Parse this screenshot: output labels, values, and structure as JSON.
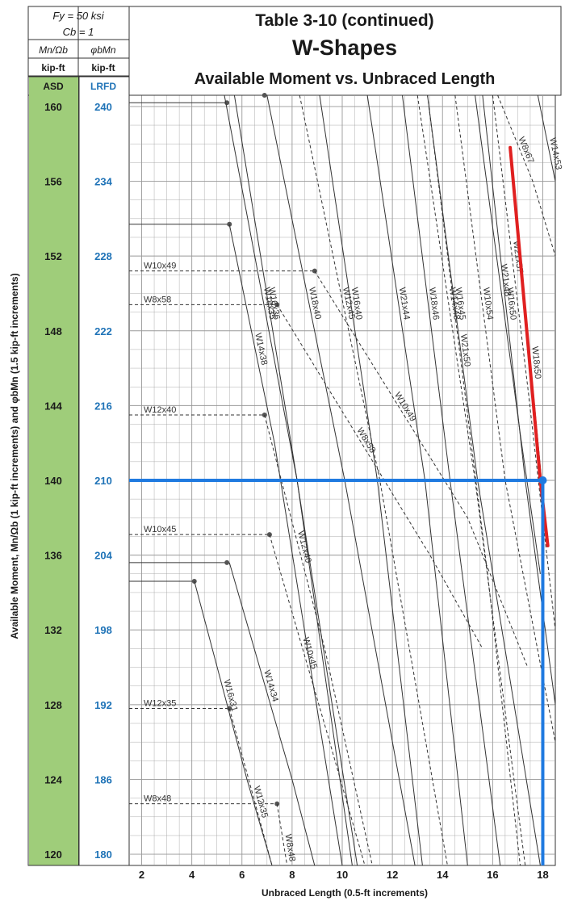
{
  "header": {
    "param1": "Fy = 50 ksi",
    "param2": "Cb = 1",
    "asd_symbol": "Mn/Ωb",
    "lrfd_symbol": "φbMn",
    "asd_unit": "kip-ft",
    "lrfd_unit": "kip-ft",
    "asd_tag": "ASD",
    "lrfd_tag": "LRFD",
    "title1": "Table 3-10 (continued)",
    "title2": "W-Shapes",
    "title3": "Available Moment vs. Unbraced Length"
  },
  "colors": {
    "asd_band": "#9fcd7a",
    "lrfd_text": "#1f73b7",
    "highlight_red": "#e02020",
    "highlight_blue": "#1f7ae0",
    "grid": "#999999",
    "curve": "#333333"
  },
  "chart_data": {
    "type": "line",
    "title": "Available Moment vs. Unbraced Length",
    "xlabel": "Unbraced Length (0.5-ft increments)",
    "ylabel": "Available Moment, Mn/Ωb (1 kip-ft increments) and φbMn (1.5 kip-ft increments)",
    "xlim": [
      1.5,
      18.5
    ],
    "ylim": [
      119.4,
      160.6
    ],
    "x_ticks": [
      2,
      4,
      6,
      8,
      10,
      12,
      14,
      16,
      18
    ],
    "asd_ticks": [
      120,
      124,
      128,
      132,
      136,
      140,
      144,
      148,
      152,
      156,
      160
    ],
    "lrfd_ticks": [
      180,
      186,
      192,
      198,
      204,
      210,
      216,
      222,
      228,
      234,
      240
    ],
    "grid": true,
    "series": [
      {
        "name": "W16x36",
        "style": "solid",
        "points": [
          [
            5.7,
            160.6
          ],
          [
            8.2,
            140
          ],
          [
            10.6,
            119.4
          ]
        ]
      },
      {
        "name": "W18x35",
        "style": "solid",
        "points": [
          [
            5.3,
            160.6
          ],
          [
            8.2,
            140
          ],
          [
            10.4,
            119.4
          ]
        ]
      },
      {
        "name": "W14x34",
        "style": "solid",
        "points": [
          [
            5.5,
            135.6
          ],
          [
            8.0,
            124
          ],
          [
            8.9,
            119.4
          ]
        ]
      },
      {
        "name": "W16x31",
        "style": "solid",
        "points": [
          [
            4.1,
            134.6
          ],
          [
            6.2,
            124
          ],
          [
            7.2,
            119.4
          ]
        ]
      },
      {
        "name": "W14x38",
        "style": "solid",
        "points": [
          [
            5.5,
            153.7
          ],
          [
            7.3,
            142
          ],
          [
            10.0,
            119.4
          ]
        ]
      },
      {
        "name": "W18x40",
        "style": "solid",
        "points": [
          [
            7.0,
            160.6
          ],
          [
            10.1,
            140
          ],
          [
            12.9,
            119.4
          ]
        ]
      },
      {
        "name": "W16x40",
        "style": "solid",
        "points": [
          [
            9.1,
            160.6
          ],
          [
            11.4,
            140
          ],
          [
            13.2,
            119.4
          ]
        ]
      },
      {
        "name": "W21x44",
        "style": "solid",
        "points": [
          [
            11.0,
            160.6
          ],
          [
            13.3,
            140
          ],
          [
            15.0,
            119.4
          ]
        ]
      },
      {
        "name": "W18x46",
        "style": "solid",
        "points": [
          [
            12.4,
            160.6
          ],
          [
            14.3,
            140
          ],
          [
            16.3,
            119.4
          ]
        ]
      },
      {
        "name": "W16x45",
        "style": "solid",
        "points": [
          [
            13.4,
            160.6
          ],
          [
            15.4,
            140
          ],
          [
            17.9,
            119.4
          ]
        ]
      },
      {
        "name": "W12x35",
        "style": "dashed",
        "points": [
          [
            5.5,
            127.8
          ],
          [
            7.2,
            119.4
          ]
        ]
      },
      {
        "name": "W12x40",
        "style": "dashed",
        "points": [
          [
            6.9,
            143.5
          ],
          [
            9.3,
            131
          ],
          [
            11.2,
            119.4
          ]
        ]
      },
      {
        "name": "W10x45",
        "style": "dashed",
        "points": [
          [
            7.1,
            137.1
          ],
          [
            9.5,
            126
          ],
          [
            10.9,
            119.4
          ]
        ]
      },
      {
        "name": "W12x45",
        "style": "dashed",
        "points": [
          [
            8.3,
            160.6
          ],
          [
            11.5,
            140
          ],
          [
            14.2,
            119.4
          ]
        ]
      },
      {
        "name": "W8x48",
        "style": "dashed",
        "points": [
          [
            7.4,
            122.7
          ],
          [
            7.8,
            119.4
          ]
        ]
      },
      {
        "name": "W8x58",
        "style": "dashed",
        "points": [
          [
            7.4,
            149.4
          ],
          [
            13.5,
            136
          ],
          [
            15.6,
            131
          ]
        ]
      },
      {
        "name": "W10x49",
        "style": "dashed",
        "points": [
          [
            8.9,
            151.2
          ],
          [
            15.0,
            138
          ],
          [
            17.4,
            130
          ]
        ]
      },
      {
        "name": "W14x48",
        "style": "dashed",
        "points": [
          [
            13.0,
            160.6
          ],
          [
            15.3,
            140
          ],
          [
            17.3,
            119.4
          ]
        ]
      },
      {
        "name": "W21x50",
        "style": "dashed",
        "points": [
          [
            13.4,
            160.6
          ],
          [
            15.8,
            135
          ],
          [
            17.1,
            119.4
          ]
        ]
      },
      {
        "name": "W10x54",
        "style": "dashed",
        "points": [
          [
            14.5,
            160.6
          ],
          [
            16.5,
            140
          ],
          [
            18.5,
            126
          ]
        ]
      },
      {
        "name": "W21x48",
        "style": "solid",
        "points": [
          [
            15.3,
            160.6
          ],
          [
            17.1,
            142.5
          ],
          [
            17.9,
            135
          ]
        ]
      },
      {
        "name": "W16x50",
        "style": "solid",
        "points": [
          [
            15.6,
            160.6
          ],
          [
            17.3,
            140
          ],
          [
            18.5,
            128
          ]
        ]
      },
      {
        "name": "W21x57",
        "style": "dashed",
        "points": [
          [
            16.0,
            160.6
          ],
          [
            17.4,
            145
          ],
          [
            18.5,
            132
          ]
        ]
      },
      {
        "name": "W8x67",
        "style": "dashed",
        "points": [
          [
            16.2,
            160.6
          ],
          [
            17.6,
            156
          ],
          [
            18.5,
            152
          ]
        ]
      },
      {
        "name": "W14x53",
        "style": "solid",
        "points": [
          [
            17.8,
            160.6
          ],
          [
            18.5,
            156
          ]
        ]
      },
      {
        "name": "W18x50",
        "style": "solid",
        "points": [
          [
            16.7,
            157.8
          ],
          [
            18.2,
            136.5
          ]
        ]
      }
    ],
    "flat_segments": [
      {
        "name": "W14x38",
        "y": 153.7,
        "x_end": 5.5
      },
      {
        "name": "W10x49",
        "y": 151.2,
        "x_end": 8.9
      },
      {
        "name": "W8x58",
        "y": 149.4,
        "x_end": 7.4
      },
      {
        "name": "W12x40",
        "y": 143.5,
        "x_end": 6.9
      },
      {
        "name": "W10x45",
        "y": 137.1,
        "x_end": 7.1
      },
      {
        "name": "W12x35",
        "y": 127.8,
        "x_end": 5.5
      },
      {
        "name": "W8x48",
        "y": 122.7,
        "x_end": 7.4
      },
      {
        "name": "W16x36",
        "y": 160.2,
        "x_end": 5.4
      },
      {
        "name": "W18x40",
        "y": 160.6,
        "x_end": 6.9
      },
      {
        "name": "W14x34",
        "y": 135.6,
        "x_end": 5.4
      },
      {
        "name": "W16x31",
        "y": 134.6,
        "x_end": 4.1
      }
    ],
    "annotations": {
      "highlight_red": {
        "name": "W18x50",
        "points": [
          [
            16.7,
            157.8
          ],
          [
            17.9,
            140
          ],
          [
            18.2,
            136.5
          ]
        ]
      },
      "highlight_blue_h": {
        "x": [
          1.5,
          18.0
        ],
        "y": 140
      },
      "highlight_blue_v": {
        "x": 18.0,
        "y": [
          119.4,
          140
        ]
      }
    }
  }
}
